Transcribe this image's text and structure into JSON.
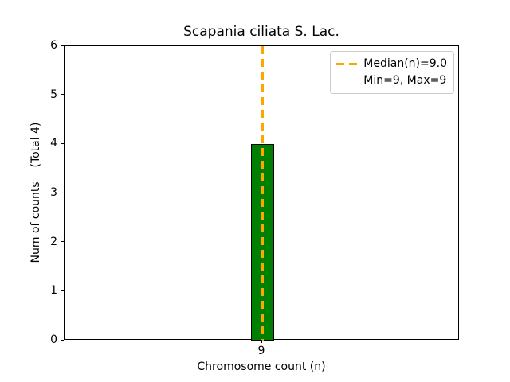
{
  "chart_data": {
    "type": "bar",
    "title": "Scapania ciliata S. Lac.",
    "xlabel": "Chromosome count (n)",
    "ylabel": "Num of counts    (Total 4)",
    "categories": [
      "9"
    ],
    "values": [
      4
    ],
    "total": 4,
    "ylim": [
      0,
      6
    ],
    "yticks": [
      0,
      1,
      2,
      3,
      4,
      5,
      6
    ],
    "grid": false,
    "bar_color": "#008000",
    "bar_edge_color": "#000000",
    "median_line": {
      "value": 9.0,
      "at_category": "9",
      "color": "#FFA500",
      "style": "dashed"
    },
    "legend": {
      "position": "upper right",
      "entries": [
        {
          "label": "Median(n)=9.0",
          "marker": "orange-dashed-line"
        },
        {
          "label": "Min=9, Max=9",
          "marker": "none"
        }
      ]
    }
  }
}
